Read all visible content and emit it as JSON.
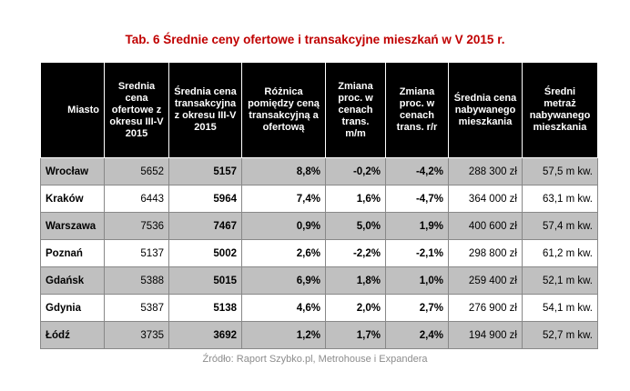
{
  "title": "Tab. 6 Średnie ceny ofertowe i transakcyjne mieszkań w V 2015 r.",
  "table": {
    "header": [
      "Miasto",
      "Srednia cena ofertowe z okresu III-V 2015",
      "Średnia cena transakcyjna z okresu III-V 2015",
      "Różnica pomiędzy ceną transakcyjną a ofertową",
      "Zmiana proc. w cenach trans. m/m",
      "Zmiana proc. w cenach trans. r/r",
      "Średnia cena nabywanego mieszkania",
      "Średni metraż nabywanego mieszkania"
    ],
    "rows": [
      [
        "Wrocław",
        "5652",
        "5157",
        "8,8%",
        "-0,2%",
        "-4,2%",
        "288 300 zł",
        "57,5 m kw."
      ],
      [
        "Kraków",
        "6443",
        "5964",
        "7,4%",
        "1,6%",
        "-4,7%",
        "364 000 zł",
        "63,1 m kw."
      ],
      [
        "Warszawa",
        "7536",
        "7467",
        "0,9%",
        "5,0%",
        "1,9%",
        "400 600 zł",
        "57,4 m kw."
      ],
      [
        "Poznań",
        "5137",
        "5002",
        "2,6%",
        "-2,2%",
        "-2,1%",
        "298 800 zł",
        "61,2 m kw."
      ],
      [
        "Gdańsk",
        "5388",
        "5015",
        "6,9%",
        "1,8%",
        "1,0%",
        "259 400 zł",
        "52,1 m kw."
      ],
      [
        "Gdynia",
        "5387",
        "5138",
        "4,6%",
        "2,0%",
        "2,7%",
        "276 900 zł",
        "54,1 m kw."
      ],
      [
        "Łódź",
        "3735",
        "3692",
        "1,2%",
        "1,7%",
        "2,4%",
        "194 900 zł",
        "52,7 m kw."
      ]
    ]
  },
  "source": "Źródło: Raport Szybko.pl, Metrohouse i Expandera"
}
